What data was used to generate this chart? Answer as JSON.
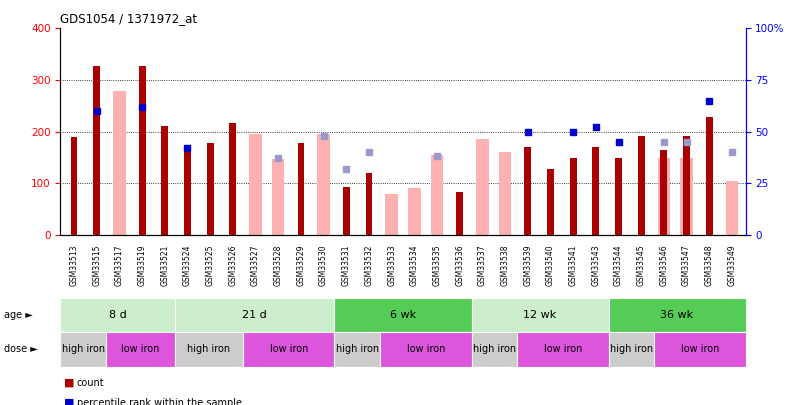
{
  "title": "GDS1054 / 1371972_at",
  "samples": [
    "GSM33513",
    "GSM33515",
    "GSM33517",
    "GSM33519",
    "GSM33521",
    "GSM33524",
    "GSM33525",
    "GSM33526",
    "GSM33527",
    "GSM33528",
    "GSM33529",
    "GSM33530",
    "GSM33531",
    "GSM33532",
    "GSM33533",
    "GSM33534",
    "GSM33535",
    "GSM33536",
    "GSM33537",
    "GSM33538",
    "GSM33539",
    "GSM33540",
    "GSM33541",
    "GSM33543",
    "GSM33544",
    "GSM33545",
    "GSM33546",
    "GSM33547",
    "GSM33548",
    "GSM33549"
  ],
  "count_values": [
    190,
    328,
    null,
    328,
    210,
    160,
    178,
    217,
    null,
    null,
    178,
    null,
    92,
    120,
    null,
    null,
    null,
    83,
    null,
    null,
    170,
    127,
    148,
    170,
    148,
    192,
    165,
    192,
    228,
    null
  ],
  "pink_values": [
    null,
    null,
    278,
    null,
    null,
    null,
    null,
    null,
    195,
    147,
    null,
    195,
    null,
    null,
    80,
    90,
    155,
    null,
    185,
    160,
    null,
    null,
    null,
    null,
    null,
    null,
    148,
    148,
    null,
    105
  ],
  "blue_dot_values": [
    null,
    60,
    null,
    62,
    null,
    42,
    null,
    null,
    null,
    null,
    null,
    null,
    null,
    null,
    null,
    null,
    null,
    null,
    null,
    null,
    50,
    null,
    50,
    52,
    45,
    null,
    null,
    null,
    65,
    null
  ],
  "light_blue_values": [
    null,
    null,
    null,
    null,
    null,
    null,
    null,
    null,
    null,
    37,
    null,
    48,
    32,
    40,
    null,
    null,
    38,
    null,
    null,
    null,
    null,
    null,
    null,
    null,
    null,
    null,
    45,
    45,
    null,
    40
  ],
  "age_groups": [
    {
      "label": "8 d",
      "start": 0,
      "end": 4,
      "dark": false
    },
    {
      "label": "21 d",
      "start": 5,
      "end": 11,
      "dark": false
    },
    {
      "label": "6 wk",
      "start": 12,
      "end": 17,
      "dark": true
    },
    {
      "label": "12 wk",
      "start": 18,
      "end": 23,
      "dark": false
    },
    {
      "label": "36 wk",
      "start": 24,
      "end": 29,
      "dark": true
    }
  ],
  "dose_groups": [
    {
      "label": "high iron",
      "start": 0,
      "end": 1
    },
    {
      "label": "low iron",
      "start": 2,
      "end": 4
    },
    {
      "label": "high iron",
      "start": 5,
      "end": 7
    },
    {
      "label": "low iron",
      "start": 8,
      "end": 11
    },
    {
      "label": "high iron",
      "start": 12,
      "end": 13
    },
    {
      "label": "low iron",
      "start": 14,
      "end": 17
    },
    {
      "label": "high iron",
      "start": 18,
      "end": 19
    },
    {
      "label": "low iron",
      "start": 20,
      "end": 23
    },
    {
      "label": "high iron",
      "start": 24,
      "end": 25
    },
    {
      "label": "low iron",
      "start": 26,
      "end": 29
    }
  ],
  "ylim_left": [
    0,
    400
  ],
  "ylim_right": [
    0,
    100
  ],
  "yticks_left": [
    0,
    100,
    200,
    300,
    400
  ],
  "yticks_right": [
    0,
    25,
    50,
    75,
    100
  ],
  "bar_color": "#aa0000",
  "pink_color": "#ffb0b0",
  "blue_dot_color": "#0000cc",
  "light_blue_color": "#9999cc",
  "age_color_light": "#cceecc",
  "age_color_dark": "#55cc55",
  "dose_color_high": "#cccccc",
  "dose_color_low": "#dd55dd",
  "bg_color": "#e8e8e8"
}
